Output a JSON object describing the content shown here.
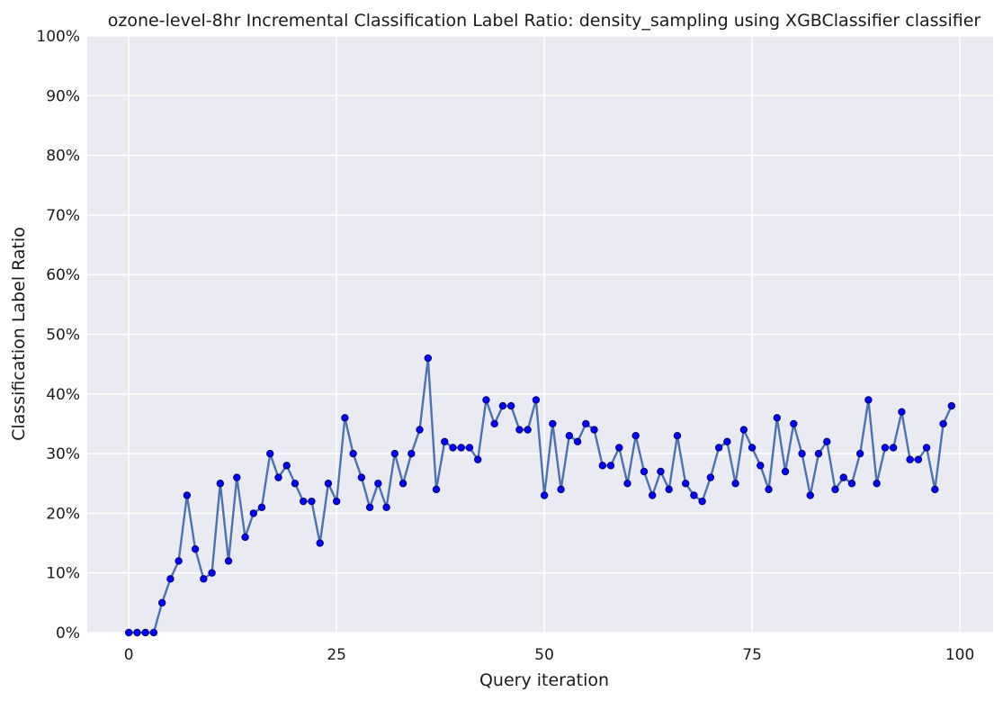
{
  "chart_data": {
    "type": "line",
    "title": "ozone-level-8hr Incremental Classification Label Ratio: density_sampling using XGBClassifier classifier",
    "xlabel": "Query iteration",
    "ylabel": "Classification Label Ratio",
    "xlim": [
      -5,
      104
    ],
    "ylim": [
      0,
      1
    ],
    "x_ticks": [
      0,
      25,
      50,
      75,
      100
    ],
    "y_ticks": [
      0,
      0.1,
      0.2,
      0.3,
      0.4,
      0.5,
      0.6,
      0.7,
      0.8,
      0.9,
      1.0
    ],
    "y_tick_labels": [
      "0%",
      "10%",
      "20%",
      "30%",
      "40%",
      "50%",
      "60%",
      "70%",
      "80%",
      "90%",
      "100%"
    ],
    "grid": true,
    "colors": {
      "background": "#eaeaf2",
      "line": "#4c72b0",
      "marker": "#0000ff",
      "marker_edge": "#00008b"
    },
    "series": [
      {
        "x": [
          0,
          1,
          2,
          3,
          4,
          5,
          6,
          7,
          8,
          9,
          10,
          11,
          12,
          13,
          14,
          15,
          16,
          17,
          18,
          19,
          20,
          21,
          22,
          23,
          24,
          25,
          26,
          27,
          28,
          29,
          30,
          31,
          32,
          33,
          34,
          35,
          36,
          37,
          38,
          39,
          40,
          41,
          42,
          43,
          44,
          45,
          46,
          47,
          48,
          49,
          50,
          51,
          52,
          53,
          54,
          55,
          56,
          57,
          58,
          59,
          60,
          61,
          62,
          63,
          64,
          65,
          66,
          67,
          68,
          69,
          70,
          71,
          72,
          73,
          74,
          75,
          76,
          77,
          78,
          79,
          80,
          81,
          82,
          83,
          84,
          85,
          86,
          87,
          88,
          89,
          90,
          91,
          92,
          93,
          94,
          95,
          96,
          97,
          98,
          99
        ],
        "values": [
          0,
          0,
          0,
          0,
          0.05,
          0.09,
          0.12,
          0.23,
          0.14,
          0.09,
          0.1,
          0.25,
          0.12,
          0.26,
          0.16,
          0.2,
          0.21,
          0.3,
          0.26,
          0.28,
          0.25,
          0.22,
          0.22,
          0.15,
          0.25,
          0.22,
          0.36,
          0.3,
          0.26,
          0.21,
          0.25,
          0.21,
          0.3,
          0.25,
          0.3,
          0.34,
          0.46,
          0.24,
          0.32,
          0.31,
          0.31,
          0.31,
          0.29,
          0.39,
          0.35,
          0.38,
          0.38,
          0.34,
          0.34,
          0.39,
          0.23,
          0.35,
          0.24,
          0.33,
          0.32,
          0.35,
          0.34,
          0.28,
          0.28,
          0.31,
          0.25,
          0.33,
          0.27,
          0.23,
          0.27,
          0.24,
          0.33,
          0.25,
          0.23,
          0.22,
          0.26,
          0.31,
          0.32,
          0.25,
          0.34,
          0.31,
          0.28,
          0.24,
          0.36,
          0.27,
          0.35,
          0.3,
          0.23,
          0.3,
          0.32,
          0.24,
          0.26,
          0.25,
          0.3,
          0.39,
          0.25,
          0.31,
          0.31,
          0.37,
          0.29,
          0.29,
          0.31,
          0.24,
          0.35,
          0.38
        ]
      }
    ]
  }
}
